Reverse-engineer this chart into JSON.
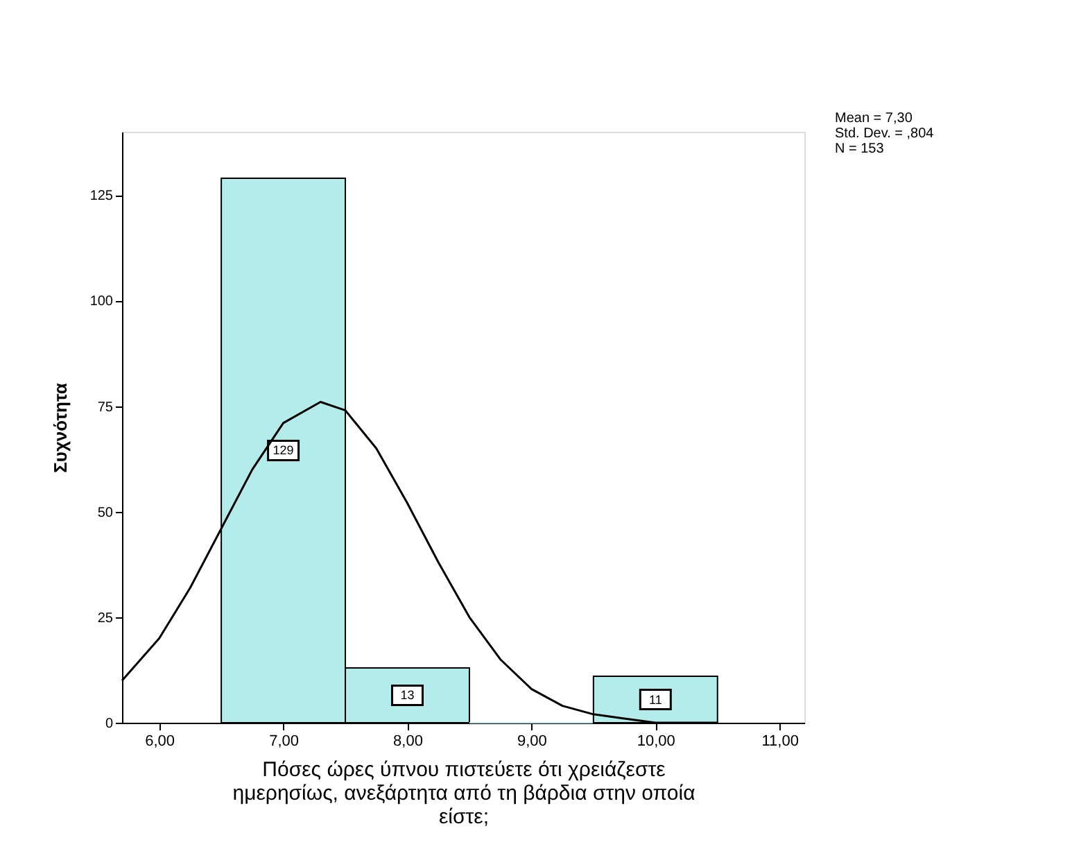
{
  "chart_data": {
    "type": "histogram",
    "xlabel": "Πόσες ώρες ύπνου πιστεύετε ότι χρειάζεστε ημερησίως, ανεξάρτητα από τη βάρδια στην οποία είστε;",
    "ylabel": "Συχνότητα",
    "bins": [
      6.5,
      7.5,
      8.5,
      9.5,
      10.5
    ],
    "values": [
      129,
      13,
      0,
      11
    ],
    "value_labels": [
      "129",
      "13",
      null,
      "11"
    ],
    "color": "#b4ecec",
    "series": [
      {
        "type": "line",
        "color": "#000000",
        "x": [
          5.7,
          6.0,
          6.25,
          6.5,
          6.75,
          7.0,
          7.3,
          7.5,
          7.75,
          8.0,
          8.25,
          8.5,
          8.75,
          9.0,
          9.25,
          9.5,
          9.75,
          10.0,
          10.5
        ],
        "values": [
          10,
          20,
          32,
          46,
          60,
          71,
          76,
          74,
          65,
          52,
          38,
          25,
          15,
          8,
          4,
          2,
          1,
          0,
          0
        ]
      }
    ],
    "xlim": [
      5.7,
      11.2
    ],
    "xticks": [
      {
        "value": 6,
        "label": "6,00"
      },
      {
        "value": 7,
        "label": "7,00"
      },
      {
        "value": 8,
        "label": "8,00"
      },
      {
        "value": 9,
        "label": "9,00"
      },
      {
        "value": 10,
        "label": "10,00"
      },
      {
        "value": 11,
        "label": "11,00"
      }
    ],
    "ylim": [
      0,
      140
    ],
    "yticks": [
      0,
      25,
      50,
      75,
      100,
      125
    ],
    "annotations": [
      "Mean = 7,30",
      "Std. Dev. = ,804",
      "N = 153"
    ],
    "grid": false
  }
}
